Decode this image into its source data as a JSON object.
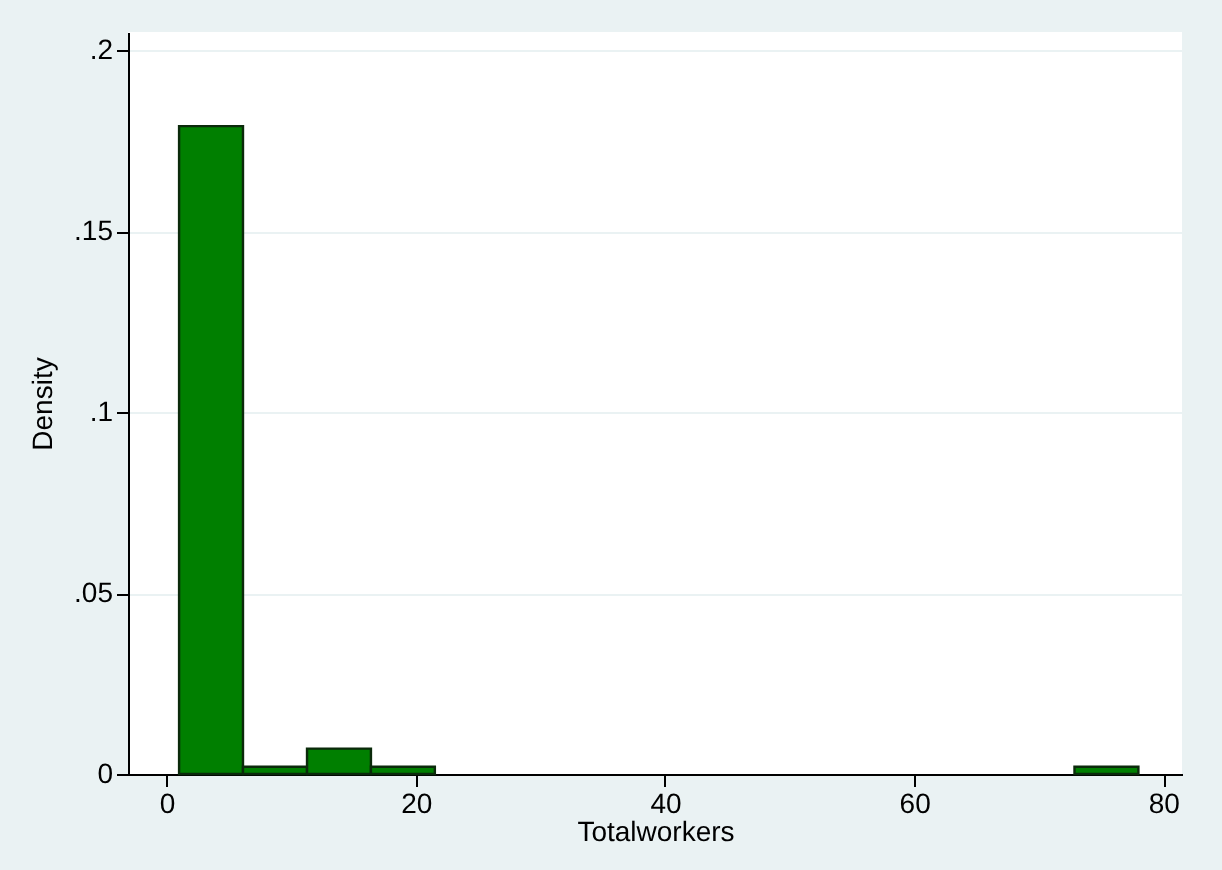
{
  "chart_data": {
    "type": "histogram",
    "xlabel": "Totalworkers",
    "ylabel": "Density",
    "bins": [
      1,
      6.13,
      11.27,
      16.4,
      21.53,
      26.67,
      31.8,
      36.93,
      42.07,
      47.2,
      52.33,
      57.47,
      62.6,
      67.73,
      72.87,
      78
    ],
    "values": [
      0.179,
      0.002,
      0.007,
      0.002,
      0,
      0,
      0,
      0,
      0,
      0,
      0,
      0,
      0,
      0,
      0.002
    ],
    "color": "#007f00",
    "xlim": [
      -3.1,
      81.5
    ],
    "xticks": [
      0,
      20,
      40,
      60,
      80
    ],
    "ylim": [
      0,
      0.205
    ],
    "yticks": [
      0,
      {
        "value": 0.05,
        "label": ".05"
      },
      {
        "value": 0.1,
        "label": ".1"
      },
      {
        "value": 0.15,
        "label": ".15"
      },
      {
        "value": 0.2,
        "label": ".2"
      }
    ],
    "grid": "y"
  }
}
